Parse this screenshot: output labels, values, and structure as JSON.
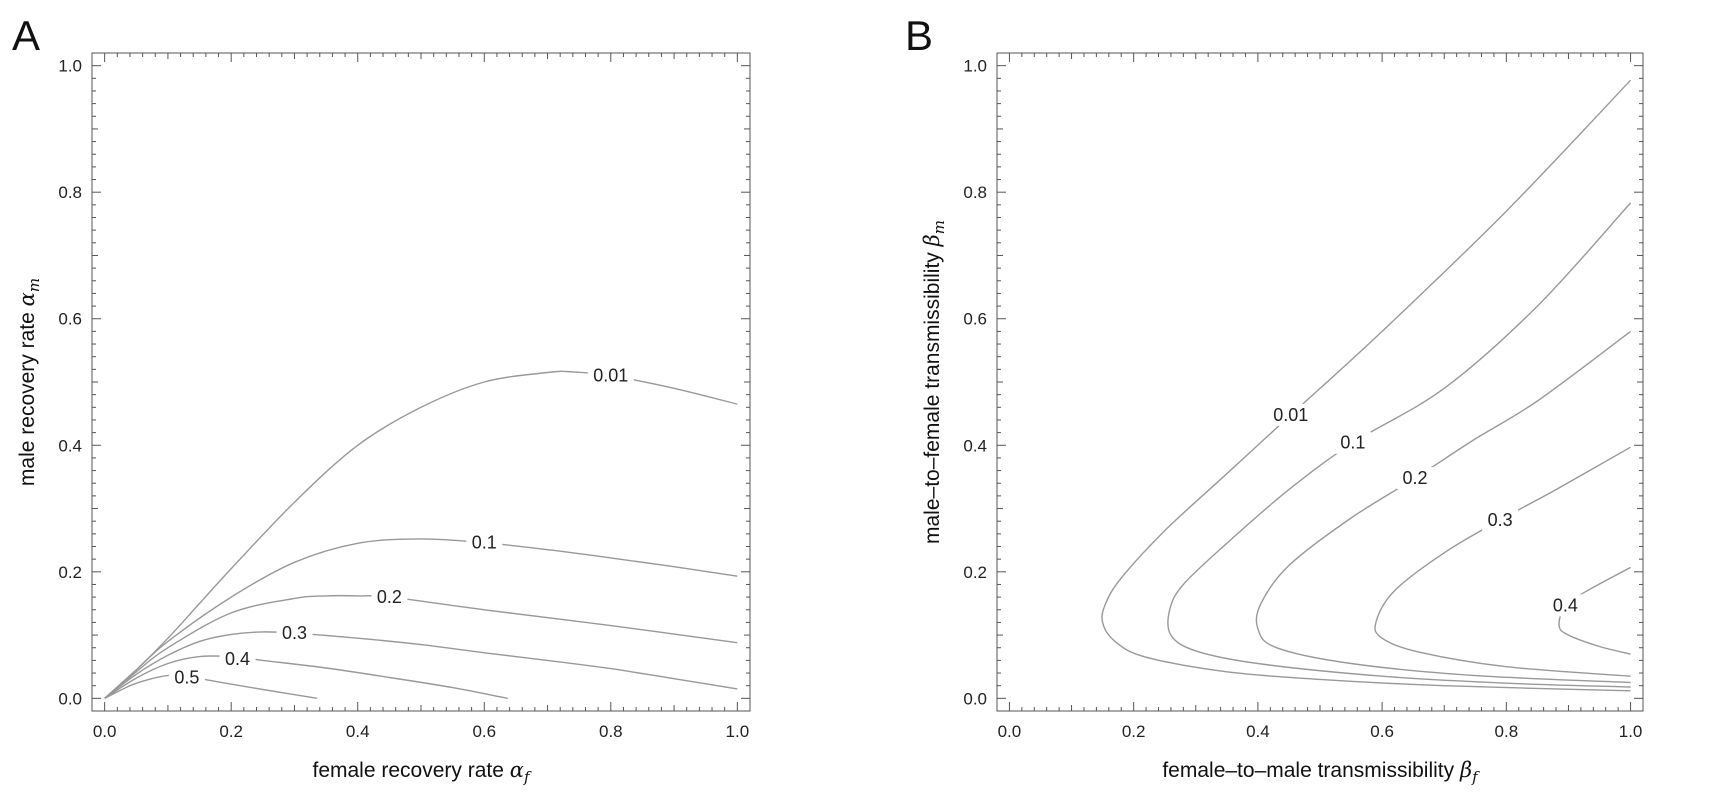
{
  "chart_data": [
    {
      "panel_label": "A",
      "type": "contour",
      "xlabel_text": "female recovery rate ",
      "xlabel_symbol": "α",
      "xlabel_sub": "f",
      "ylabel_text": "male recovery rate ",
      "ylabel_symbol": "α",
      "ylabel_sub": "m",
      "xlim": [
        -0.02,
        1.02
      ],
      "ylim": [
        -0.02,
        1.02
      ],
      "xticks": [
        0.0,
        0.2,
        0.4,
        0.6,
        0.8,
        1.0
      ],
      "yticks": [
        0.0,
        0.2,
        0.4,
        0.6,
        0.8,
        1.0
      ],
      "xtick_labels": [
        "0.0",
        "0.2",
        "0.4",
        "0.6",
        "0.8",
        "1.0"
      ],
      "ytick_labels": [
        "0.0",
        "0.2",
        "0.4",
        "0.6",
        "0.8",
        "1.0"
      ],
      "line_color": "#999999",
      "contours": [
        {
          "level": "0.01",
          "label_at": [
            0.8,
            0.51
          ],
          "points": [
            [
              0,
              0
            ],
            [
              0.05,
              0.045
            ],
            [
              0.1,
              0.095
            ],
            [
              0.15,
              0.15
            ],
            [
              0.2,
              0.205
            ],
            [
              0.3,
              0.31
            ],
            [
              0.4,
              0.4
            ],
            [
              0.5,
              0.46
            ],
            [
              0.6,
              0.5
            ],
            [
              0.7,
              0.515
            ],
            [
              0.74,
              0.516
            ],
            [
              0.8,
              0.51
            ],
            [
              0.9,
              0.49
            ],
            [
              1.0,
              0.465
            ]
          ]
        },
        {
          "level": "0.1",
          "label_at": [
            0.6,
            0.246
          ],
          "points": [
            [
              0,
              0
            ],
            [
              0.05,
              0.045
            ],
            [
              0.1,
              0.09
            ],
            [
              0.2,
              0.16
            ],
            [
              0.3,
              0.215
            ],
            [
              0.4,
              0.245
            ],
            [
              0.5,
              0.252
            ],
            [
              0.6,
              0.246
            ],
            [
              0.7,
              0.235
            ],
            [
              0.8,
              0.222
            ],
            [
              0.9,
              0.208
            ],
            [
              1.0,
              0.193
            ]
          ]
        },
        {
          "level": "0.2",
          "label_at": [
            0.45,
            0.16
          ],
          "points": [
            [
              0,
              0
            ],
            [
              0.05,
              0.042
            ],
            [
              0.1,
              0.08
            ],
            [
              0.2,
              0.135
            ],
            [
              0.3,
              0.158
            ],
            [
              0.35,
              0.162
            ],
            [
              0.4,
              0.162
            ],
            [
              0.45,
              0.16
            ],
            [
              0.6,
              0.14
            ],
            [
              0.8,
              0.115
            ],
            [
              1.0,
              0.088
            ]
          ]
        },
        {
          "level": "0.3",
          "label_at": [
            0.3,
            0.103
          ],
          "points": [
            [
              0,
              0
            ],
            [
              0.05,
              0.038
            ],
            [
              0.1,
              0.068
            ],
            [
              0.15,
              0.09
            ],
            [
              0.2,
              0.101
            ],
            [
              0.25,
              0.105
            ],
            [
              0.3,
              0.103
            ],
            [
              0.4,
              0.095
            ],
            [
              0.5,
              0.085
            ],
            [
              0.6,
              0.072
            ],
            [
              0.7,
              0.06
            ],
            [
              0.8,
              0.047
            ],
            [
              0.9,
              0.031
            ],
            [
              1.0,
              0.015
            ]
          ]
        },
        {
          "level": "0.4",
          "label_at": [
            0.21,
            0.062
          ],
          "points": [
            [
              0,
              0
            ],
            [
              0.05,
              0.032
            ],
            [
              0.1,
              0.055
            ],
            [
              0.15,
              0.066
            ],
            [
              0.2,
              0.066
            ],
            [
              0.25,
              0.06
            ],
            [
              0.35,
              0.048
            ],
            [
              0.45,
              0.033
            ],
            [
              0.55,
              0.017
            ],
            [
              0.637,
              0.0
            ]
          ]
        },
        {
          "level": "0.5",
          "label_at": [
            0.13,
            0.033
          ],
          "points": [
            [
              0,
              0
            ],
            [
              0.04,
              0.02
            ],
            [
              0.07,
              0.03
            ],
            [
              0.1,
              0.036
            ],
            [
              0.13,
              0.035
            ],
            [
              0.18,
              0.026
            ],
            [
              0.25,
              0.014
            ],
            [
              0.336,
              0.0
            ]
          ]
        }
      ]
    },
    {
      "panel_label": "B",
      "type": "contour",
      "xlabel_text": "female–to–male transmissibility ",
      "xlabel_symbol": "β",
      "xlabel_sub": "f",
      "ylabel_text": "male–to–female transmissibility ",
      "ylabel_symbol": "β",
      "ylabel_sub": "m",
      "xlim": [
        -0.02,
        1.02
      ],
      "ylim": [
        -0.02,
        1.02
      ],
      "xticks": [
        0.0,
        0.2,
        0.4,
        0.6,
        0.8,
        1.0
      ],
      "yticks": [
        0.0,
        0.2,
        0.4,
        0.6,
        0.8,
        1.0
      ],
      "xtick_labels": [
        "0.0",
        "0.2",
        "0.4",
        "0.6",
        "0.8",
        "1.0"
      ],
      "ytick_labels": [
        "0.0",
        "0.2",
        "0.4",
        "0.6",
        "0.8",
        "1.0"
      ],
      "line_color": "#999999",
      "contours": [
        {
          "level": "0.01",
          "label_at": [
            0.453,
            0.448
          ],
          "points": [
            [
              1.0,
              0.977
            ],
            [
              0.8,
              0.77
            ],
            [
              0.6,
              0.58
            ],
            [
              0.453,
              0.448
            ],
            [
              0.35,
              0.355
            ],
            [
              0.25,
              0.265
            ],
            [
              0.18,
              0.19
            ],
            [
              0.155,
              0.15
            ],
            [
              0.15,
              0.12
            ],
            [
              0.17,
              0.09
            ],
            [
              0.22,
              0.065
            ],
            [
              0.35,
              0.042
            ],
            [
              0.5,
              0.03
            ],
            [
              0.7,
              0.02
            ],
            [
              1.0,
              0.012
            ]
          ]
        },
        {
          "level": "0.1",
          "label_at": [
            0.553,
            0.404
          ],
          "points": [
            [
              1.0,
              0.783
            ],
            [
              0.85,
              0.62
            ],
            [
              0.7,
              0.49
            ],
            [
              0.553,
              0.404
            ],
            [
              0.45,
              0.33
            ],
            [
              0.35,
              0.245
            ],
            [
              0.28,
              0.18
            ],
            [
              0.258,
              0.14
            ],
            [
              0.26,
              0.1
            ],
            [
              0.3,
              0.075
            ],
            [
              0.4,
              0.055
            ],
            [
              0.6,
              0.035
            ],
            [
              0.8,
              0.024
            ],
            [
              1.0,
              0.018
            ]
          ]
        },
        {
          "level": "0.2",
          "label_at": [
            0.653,
            0.348
          ],
          "points": [
            [
              1.0,
              0.58
            ],
            [
              0.85,
              0.47
            ],
            [
              0.75,
              0.41
            ],
            [
              0.653,
              0.348
            ],
            [
              0.55,
              0.285
            ],
            [
              0.45,
              0.21
            ],
            [
              0.405,
              0.15
            ],
            [
              0.4,
              0.11
            ],
            [
              0.43,
              0.08
            ],
            [
              0.55,
              0.055
            ],
            [
              0.75,
              0.036
            ],
            [
              1.0,
              0.025
            ]
          ]
        },
        {
          "level": "0.3",
          "label_at": [
            0.79,
            0.282
          ],
          "points": [
            [
              1.0,
              0.397
            ],
            [
              0.88,
              0.33
            ],
            [
              0.79,
              0.282
            ],
            [
              0.7,
              0.23
            ],
            [
              0.62,
              0.17
            ],
            [
              0.59,
              0.12
            ],
            [
              0.6,
              0.095
            ],
            [
              0.66,
              0.073
            ],
            [
              0.8,
              0.05
            ],
            [
              1.0,
              0.035
            ]
          ]
        },
        {
          "level": "0.4",
          "label_at": [
            0.895,
            0.147
          ],
          "points": [
            [
              1.0,
              0.207
            ],
            [
              0.93,
              0.17
            ],
            [
              0.895,
              0.147
            ],
            [
              0.885,
              0.115
            ],
            [
              0.9,
              0.1
            ],
            [
              0.95,
              0.082
            ],
            [
              1.0,
              0.07
            ]
          ]
        }
      ]
    }
  ]
}
